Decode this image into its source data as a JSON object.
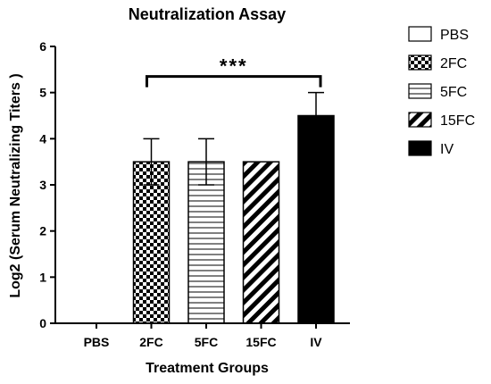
{
  "chart_data": {
    "type": "bar",
    "title": "Neutralization Assay",
    "xlabel": "Treatment Groups",
    "ylabel": "Log2 (Serum Neutralizing Titers )",
    "ylim": [
      0,
      6
    ],
    "yticks": [
      0,
      1,
      2,
      3,
      4,
      5,
      6
    ],
    "grid": false,
    "legend_position": "right",
    "categories": [
      "PBS",
      "2FC",
      "5FC",
      "15FC",
      "IV"
    ],
    "values": [
      0,
      3.5,
      3.5,
      3.5,
      4.5
    ],
    "error_upper": [
      0,
      4.0,
      4.0,
      3.5,
      5.0
    ],
    "error_lower": [
      0,
      3.0,
      3.0,
      3.5,
      4.0
    ],
    "patterns": [
      "plain",
      "checker",
      "horizontal-stripes",
      "diagonal-stripes",
      "solid-black"
    ],
    "legend": [
      "PBS",
      "2FC",
      "5FC",
      "15FC",
      "IV"
    ],
    "annotation": {
      "text": "***",
      "from_category": "2FC",
      "to_category": "IV",
      "level": 5.35
    }
  }
}
